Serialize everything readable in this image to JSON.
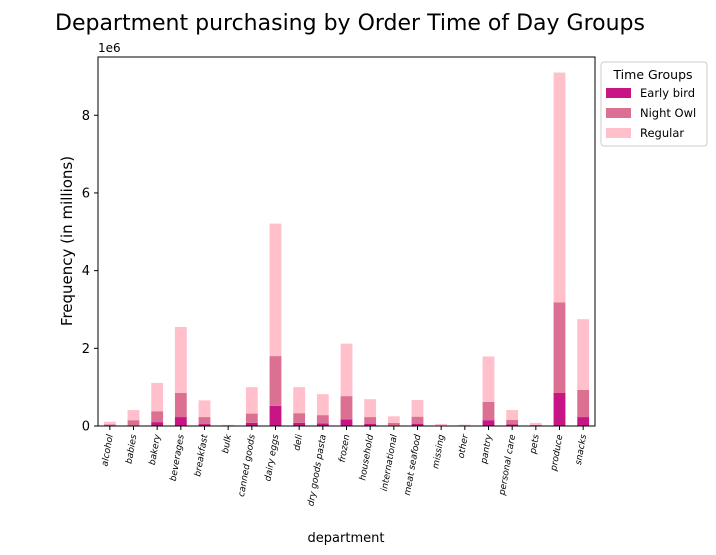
{
  "chart_data": {
    "type": "bar",
    "stacked": true,
    "title": "Department purchasing by Order Time of Day Groups",
    "xlabel": "department",
    "ylabel": "Frequency (in millions)",
    "y_offset_label": "1e6",
    "ylim": [
      0,
      9500000
    ],
    "yticks": [
      0,
      2000000,
      4000000,
      6000000,
      8000000
    ],
    "ytick_labels": [
      "0",
      "2",
      "4",
      "6",
      "8"
    ],
    "grid": false,
    "legend": {
      "title": "Time Groups",
      "placement": "outside top-right"
    },
    "categories": [
      "alcohol",
      "babies",
      "bakery",
      "beverages",
      "breakfast",
      "bulk",
      "canned goods",
      "dairy eggs",
      "deli",
      "dry goods pasta",
      "frozen",
      "household",
      "international",
      "meat seafood",
      "missing",
      "other",
      "pantry",
      "personal care",
      "pets",
      "produce",
      "snacks"
    ],
    "series": [
      {
        "name": "Early bird",
        "color": "#c71585",
        "values": [
          5000,
          20000,
          100000,
          230000,
          50000,
          1000,
          80000,
          520000,
          80000,
          70000,
          170000,
          60000,
          20000,
          60000,
          2000,
          1000,
          150000,
          40000,
          3000,
          850000,
          230000
        ]
      },
      {
        "name": "Night Owl",
        "color": "#db7093",
        "values": [
          35000,
          130000,
          280000,
          620000,
          180000,
          8000,
          240000,
          1280000,
          250000,
          210000,
          600000,
          170000,
          60000,
          180000,
          13000,
          9000,
          470000,
          120000,
          22000,
          2330000,
          700000
        ]
      },
      {
        "name": "Regular",
        "color": "#ffc0cb",
        "values": [
          70000,
          260000,
          730000,
          1700000,
          430000,
          20000,
          680000,
          3410000,
          670000,
          540000,
          1350000,
          460000,
          170000,
          430000,
          40000,
          25000,
          1170000,
          250000,
          55000,
          5920000,
          1820000
        ]
      }
    ]
  }
}
